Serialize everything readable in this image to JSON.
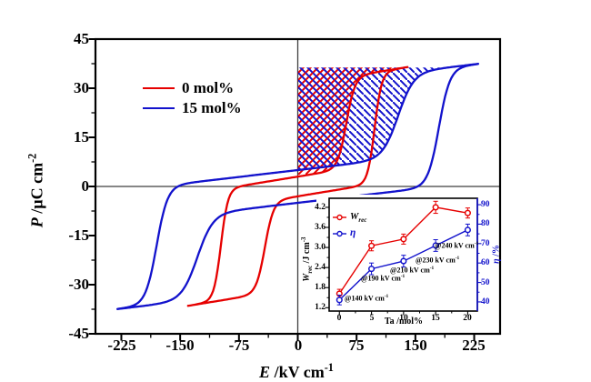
{
  "colors": {
    "red": "#e60000",
    "blue": "#1212cc",
    "frame": "#000000",
    "zero_line": "#3f3f3f",
    "text": "#000000"
  },
  "main": {
    "y_title": {
      "sym": "P",
      "unit": " /µC cm",
      "sup": "-2"
    },
    "x_title": {
      "sym": "E",
      "unit": " /kV cm",
      "sup": "-1"
    },
    "y_tick_labels": [
      "45",
      "30",
      "15",
      "0",
      "-15",
      "-30",
      "-45"
    ],
    "x_tick_labels": [
      "-225",
      "-150",
      "-75",
      "0",
      "75",
      "150",
      "225"
    ],
    "legend": [
      {
        "label": "0 mol%",
        "color_key": "red"
      },
      {
        "label": "15 mol%",
        "color_key": "blue"
      }
    ]
  },
  "inset": {
    "x_title": "Ta /mol%",
    "left_title": {
      "sym": "W",
      "sub": "rec",
      "unit": " /J cm",
      "sup": "-3"
    },
    "right_title": {
      "sym": "η",
      "unit": " /%"
    },
    "legend": [
      {
        "sym": "W",
        "sub": "rec"
      },
      {
        "sym": "η",
        "sub": ""
      }
    ],
    "x_tick_labels": [
      "0",
      "5",
      "10",
      "15",
      "20"
    ],
    "left_tick_labels": [
      "4.2",
      "3.6",
      "3.0",
      "2.4",
      "1.8",
      "1.2"
    ],
    "right_tick_labels": [
      "90",
      "80",
      "70",
      "60",
      "50",
      "40"
    ],
    "annotations": [
      {
        "text": "@140 kV cm",
        "sup": "-1"
      },
      {
        "text": "@190 kV cm",
        "sup": "-1"
      },
      {
        "text": "@210 kV cm",
        "sup": "-1"
      },
      {
        "text": "@230 kV cm",
        "sup": "-1"
      },
      {
        "text": "@240 kV cm",
        "sup": "-1"
      }
    ]
  },
  "chart_data": [
    {
      "type": "line",
      "name": "P-E hysteresis loops",
      "xlabel": "E /kV cm-1",
      "ylabel": "P /uC cm-2",
      "xlim": [
        -258,
        258
      ],
      "ylim": [
        -45,
        45
      ],
      "x_ticks": [
        -225,
        -150,
        -75,
        0,
        75,
        150,
        225
      ],
      "y_ticks": [
        45,
        30,
        15,
        0,
        -15,
        -30,
        -45
      ],
      "hatch_top_P": 36.3,
      "series": [
        {
          "name": "0 mol%",
          "color_key": "red",
          "E_max": 140,
          "P_max": 36.5,
          "P_remanent": 3,
          "E_forward_switch": 98,
          "E_back_switch": 55,
          "hatch": "/",
          "model": {
            "A1": 14,
            "A2": 17,
            "k": 0.039,
            "Eba": 42,
            "Ebd": 62,
            "wb": 11,
            "Ef": 98,
            "wf": 9
          }
        },
        {
          "name": "15 mol%",
          "color_key": "blue",
          "E_max": 230,
          "P_max": 37.4,
          "P_remanent": 5,
          "E_forward_switch": 180,
          "E_back_switch": 128,
          "hatch": "\\",
          "model": {
            "A1": 13,
            "A2": 18,
            "k": 0.028,
            "Eba": 128,
            "Ebd": 128,
            "wb": 20,
            "Ef": 180,
            "wf": 14
          }
        }
      ]
    },
    {
      "type": "line",
      "name": "Energy storage properties vs Ta content",
      "xlabel": "Ta /mol%",
      "ylabel_left": "Wrec /J cm-3",
      "ylabel_right": "η /%",
      "x": [
        0,
        5,
        10,
        15,
        20
      ],
      "xlim": [
        -1.6,
        21.5
      ],
      "ylim_left": [
        1.1,
        4.47
      ],
      "ylim_right": [
        35.3,
        93.3
      ],
      "x_ticks": [
        0,
        5,
        10,
        15,
        20
      ],
      "left_ticks": [
        1.2,
        1.8,
        2.4,
        3.0,
        3.6,
        4.2
      ],
      "right_ticks": [
        40,
        50,
        60,
        70,
        80,
        90
      ],
      "series": [
        {
          "name": "Wrec",
          "axis": "left",
          "color_key": "red",
          "values": [
            1.62,
            3.05,
            3.25,
            4.2,
            4.03
          ],
          "errors": [
            0.13,
            0.15,
            0.15,
            0.18,
            0.15
          ]
        },
        {
          "name": "eta",
          "axis": "right",
          "color_key": "blue",
          "values": [
            41,
            57,
            61,
            69,
            77
          ],
          "errors": [
            2.5,
            3,
            3,
            3,
            3
          ]
        }
      ],
      "annotation_values": [
        "@140 kV cm-1",
        "@190 kV cm-1",
        "@210 kV cm-1",
        "@230 kV cm-1",
        "@240 kV cm-1"
      ]
    }
  ]
}
